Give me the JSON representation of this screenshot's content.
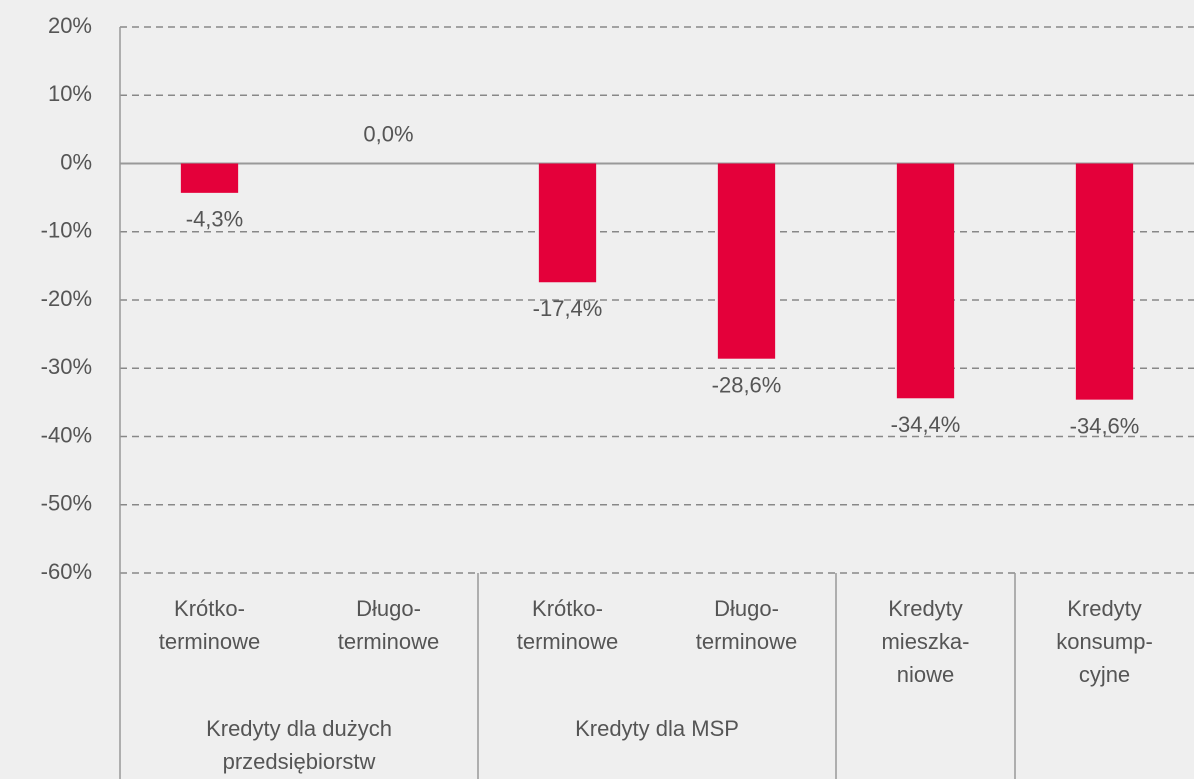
{
  "chart_data": {
    "type": "bar",
    "categories": [
      [
        "Krótko-",
        "terminowe"
      ],
      [
        "Długo-",
        "terminowe"
      ],
      [
        "Krótko-",
        "terminowe"
      ],
      [
        "Długo-",
        "terminowe"
      ],
      [
        "Kredyty",
        "mieszka-",
        "niowe"
      ],
      [
        "Kredyty",
        "konsump-",
        "cyjne"
      ]
    ],
    "groups": [
      [
        "Kredyty dla dużych",
        "przedsiębiorstw"
      ],
      [
        "Kredyty dla MSP"
      ]
    ],
    "values": [
      -4.3,
      0.0,
      -17.4,
      -28.6,
      -34.4,
      -34.6
    ],
    "value_labels": [
      "-4,3%",
      "0,0%",
      "-17,4%",
      "-28,6%",
      "-34,4%",
      "-34,6%"
    ],
    "color": "#e4003a",
    "ylim": [
      -60,
      20
    ],
    "yticks": [
      {
        "value": 20,
        "label": "20%"
      },
      {
        "value": 10,
        "label": "10%"
      },
      {
        "value": 0,
        "label": "0%"
      },
      {
        "value": -10,
        "label": "-10%"
      },
      {
        "value": -20,
        "label": "-20%"
      },
      {
        "value": -30,
        "label": "-30%"
      },
      {
        "value": -40,
        "label": "-40%"
      },
      {
        "value": -50,
        "label": "-50%"
      },
      {
        "value": -60,
        "label": "-60%"
      }
    ],
    "grid": true
  }
}
